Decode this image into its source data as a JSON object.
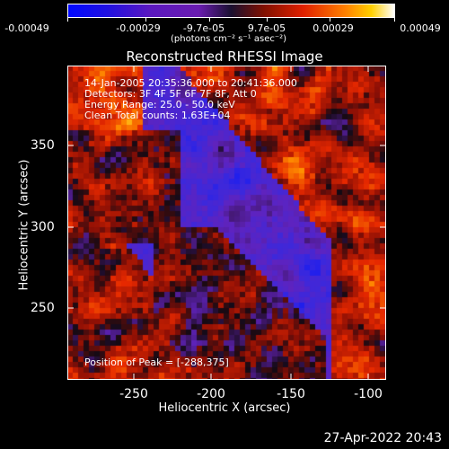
{
  "colorbar": {
    "ticks": [
      "-0.00049",
      "-0.00029",
      "-9.7e-05",
      "9.7e-05",
      "0.00029",
      "0.00049"
    ],
    "units": "(photons cm⁻² s⁻¹ asec⁻²)"
  },
  "plot": {
    "title": "Reconstructed RHESSI Image",
    "xlabel": "Heliocentric X (arcsec)",
    "ylabel": "Heliocentric Y (arcsec)",
    "xticks": [
      "-250",
      "-200",
      "-150",
      "-100"
    ],
    "yticks": [
      "350",
      "300",
      "250"
    ]
  },
  "annotations": {
    "time": "14-Jan-2005 20:35:36.000 to 20:41:36.000",
    "detectors": "Detectors: 3F 4F 5F 6F 7F 8F, Att 0",
    "energy": "Energy Range: 25.0 - 50.0 keV",
    "clean": "Clean    Total counts: 1.63E+04",
    "peak": "Position of Peak = [-288,375]"
  },
  "footer": {
    "date": "27-Apr-2022 20:43"
  }
}
